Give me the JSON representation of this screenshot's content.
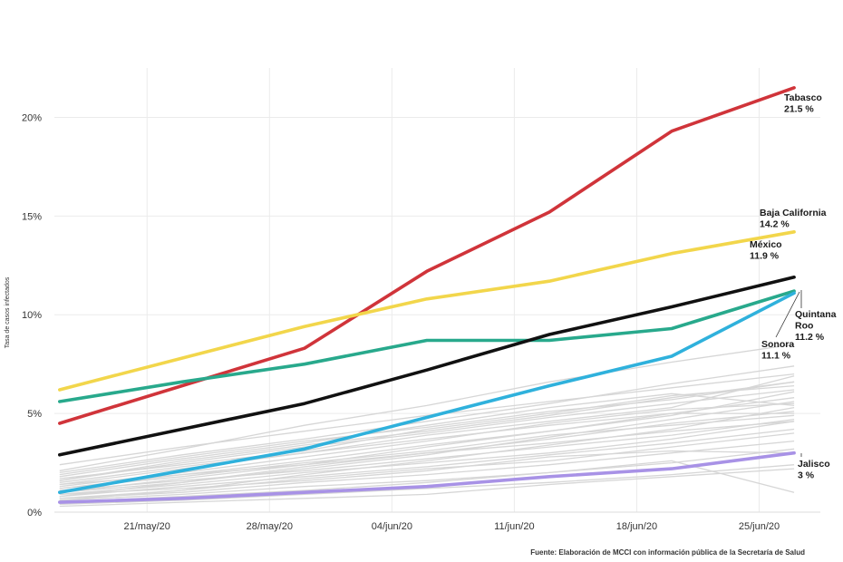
{
  "chart_data": {
    "type": "line",
    "ylabel": "Tasa de casos infectados",
    "xlabel": "",
    "source": "Fuente: Elaboración de MCCI con información pública de la Secretaría de Salud",
    "x": [
      "2020-05-16",
      "2020-05-23",
      "2020-05-30",
      "2020-06-06",
      "2020-06-13",
      "2020-06-20",
      "2020-06-27"
    ],
    "xticks": [
      "21/may/20",
      "28/may/20",
      "04/jun/20",
      "11/jun/20",
      "18/jun/20",
      "25/jun/20"
    ],
    "xtick_days": [
      5,
      12,
      19,
      26,
      33,
      40
    ],
    "x_days": [
      0,
      7,
      14,
      21,
      28,
      35,
      42
    ],
    "xlim": [
      -0.3,
      43.5
    ],
    "ylim": [
      0,
      22.5
    ],
    "yticks": [
      0,
      5,
      10,
      15,
      20
    ],
    "ytick_labels": [
      "0%",
      "5%",
      "10%",
      "15%",
      "20%"
    ],
    "series": [
      {
        "name": "Tabasco",
        "color": "#d0343a",
        "values": [
          4.5,
          6.4,
          8.3,
          12.2,
          15.2,
          19.3,
          21.5
        ],
        "label": [
          "Tabasco",
          "21.5 %"
        ]
      },
      {
        "name": "Baja California",
        "color": "#f2d64b",
        "values": [
          6.2,
          7.8,
          9.4,
          10.8,
          11.7,
          13.1,
          14.2
        ],
        "label": [
          "Baja California",
          "14.2 %"
        ]
      },
      {
        "name": "Quintana Roo",
        "color": "#28a98c",
        "values": [
          5.6,
          6.6,
          7.5,
          8.7,
          8.7,
          9.3,
          11.2
        ],
        "label": [
          "Quintana",
          "Roo",
          "11.2 %"
        ]
      },
      {
        "name": "México",
        "color": "#111111",
        "values": [
          2.9,
          4.2,
          5.5,
          7.2,
          9.0,
          10.4,
          11.9
        ],
        "label": [
          "México",
          "11.9 %"
        ]
      },
      {
        "name": "Sonora",
        "color": "#2fb1dc",
        "values": [
          1.0,
          2.1,
          3.2,
          4.8,
          6.4,
          7.9,
          11.1
        ],
        "label": [
          "Sonora",
          "11.1 %"
        ]
      },
      {
        "name": "Jalisco",
        "color": "#a892e6",
        "values": [
          0.5,
          0.7,
          1.0,
          1.3,
          1.8,
          2.2,
          3.0
        ],
        "label": [
          "Jalisco",
          "3 %"
        ]
      }
    ],
    "background_series": [
      [
        1.7,
        2.4,
        3.1,
        4.2,
        5.0,
        5.9,
        6.4
      ],
      [
        0.8,
        1.5,
        2.2,
        2.9,
        3.8,
        4.7,
        5.6
      ],
      [
        1.2,
        1.9,
        2.6,
        3.4,
        4.1,
        4.9,
        6.1
      ],
      [
        0.6,
        1.1,
        1.9,
        2.6,
        3.4,
        4.2,
        5.3
      ],
      [
        1.9,
        2.8,
        3.6,
        4.3,
        5.1,
        5.7,
        6.6
      ],
      [
        0.9,
        1.4,
        2.0,
        2.5,
        3.0,
        3.7,
        4.6
      ],
      [
        1.4,
        2.2,
        3.0,
        3.9,
        4.6,
        5.3,
        6.9
      ],
      [
        0.7,
        1.0,
        1.5,
        1.9,
        2.4,
        3.0,
        3.6
      ],
      [
        2.4,
        3.3,
        4.1,
        4.9,
        5.6,
        6.3,
        7.0
      ],
      [
        1.0,
        1.7,
        2.4,
        3.3,
        4.1,
        5.0,
        5.8
      ],
      [
        0.5,
        0.8,
        1.1,
        1.5,
        2.0,
        2.5,
        3.2
      ],
      [
        1.6,
        2.5,
        3.3,
        4.0,
        4.8,
        5.5,
        6.2
      ],
      [
        1.1,
        1.6,
        2.1,
        2.7,
        3.3,
        3.9,
        4.7
      ],
      [
        2.1,
        3.2,
        4.4,
        5.4,
        6.6,
        7.6,
        8.5
      ],
      [
        0.4,
        0.6,
        0.9,
        1.2,
        1.5,
        1.9,
        2.4
      ],
      [
        1.3,
        2.0,
        2.8,
        3.6,
        4.5,
        5.2,
        5.5
      ],
      [
        0.8,
        1.3,
        1.8,
        2.3,
        2.9,
        3.5,
        4.2
      ],
      [
        1.5,
        2.3,
        3.0,
        3.7,
        4.4,
        5.0,
        5.0
      ],
      [
        0.6,
        0.9,
        1.3,
        1.6,
        2.0,
        2.6,
        1.0
      ],
      [
        1.8,
        2.7,
        3.5,
        4.4,
        5.3,
        6.0,
        5.4
      ],
      [
        0.9,
        1.2,
        1.6,
        2.1,
        2.8,
        3.1,
        3.0
      ],
      [
        1.2,
        1.8,
        2.5,
        3.1,
        3.9,
        4.4,
        4.9
      ],
      [
        0.7,
        1.1,
        1.7,
        2.2,
        2.6,
        3.3,
        4.0
      ],
      [
        2.0,
        2.9,
        3.7,
        4.6,
        5.5,
        6.5,
        7.4
      ],
      [
        0.3,
        0.5,
        0.7,
        0.9,
        1.4,
        1.8,
        2.2
      ],
      [
        1.4,
        1.9,
        2.4,
        3.0,
        3.5,
        4.1,
        4.6
      ],
      [
        1.0,
        1.5,
        2.3,
        3.0,
        3.7,
        4.5,
        5.1
      ],
      [
        1.6,
        2.6,
        3.4,
        4.1,
        4.9,
        5.8,
        6.6
      ]
    ]
  }
}
